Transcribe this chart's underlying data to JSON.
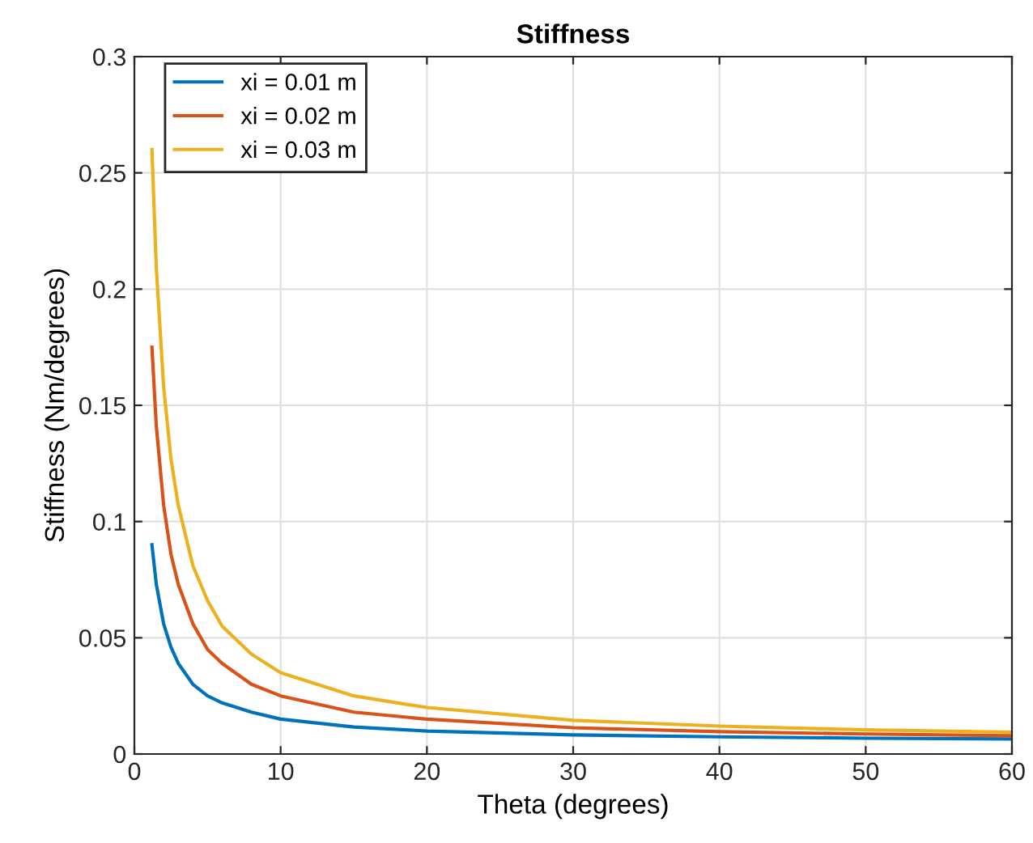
{
  "chart_data": {
    "type": "line",
    "title": "Stiffness",
    "xlabel": "Theta (degrees)",
    "ylabel": "Stiffness (Nm/degrees)",
    "x": [
      1.2,
      1.5,
      2,
      2.5,
      3,
      4,
      5,
      6,
      8,
      10,
      15,
      20,
      30,
      40,
      50,
      60
    ],
    "series": [
      {
        "name": "xi = 0.01 m",
        "color": "#0072bd",
        "values": [
          0.09,
          0.073,
          0.056,
          0.046,
          0.039,
          0.03,
          0.025,
          0.022,
          0.018,
          0.015,
          0.0116,
          0.0099,
          0.0082,
          0.0074,
          0.0068,
          0.0065
        ]
      },
      {
        "name": "xi = 0.02 m",
        "color": "#d95319",
        "values": [
          0.175,
          0.141,
          0.107,
          0.086,
          0.073,
          0.056,
          0.045,
          0.039,
          0.03,
          0.025,
          0.018,
          0.015,
          0.0113,
          0.0096,
          0.0086,
          0.0079
        ]
      },
      {
        "name": "xi = 0.03 m",
        "color": "#edb120",
        "values": [
          0.26,
          0.209,
          0.158,
          0.127,
          0.107,
          0.081,
          0.066,
          0.055,
          0.043,
          0.035,
          0.025,
          0.02,
          0.0145,
          0.012,
          0.0104,
          0.0094
        ]
      }
    ],
    "xlim": [
      0,
      60
    ],
    "xticks": [
      0,
      10,
      20,
      30,
      40,
      50,
      60
    ],
    "ylim": [
      0,
      0.3
    ],
    "yticks": [
      0,
      0.05,
      0.1,
      0.15,
      0.2,
      0.25,
      0.3
    ],
    "grid": true,
    "legend": "top left"
  }
}
